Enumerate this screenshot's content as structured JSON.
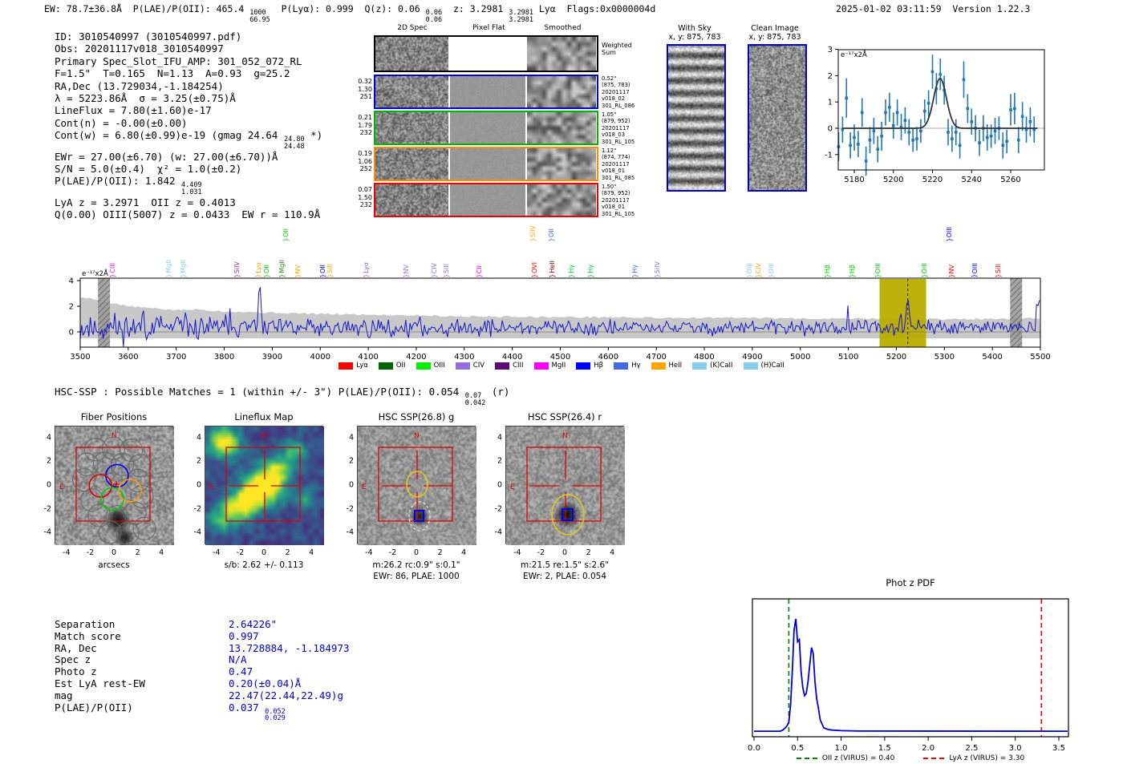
{
  "header": {
    "left_segments": [
      {
        "t": "EW: 78.7±36.8Å  P(LAE)/P(OII): 465.4 "
      },
      {
        "frac": [
          "1000",
          "66.95"
        ]
      },
      {
        "t": "  P(Lyα): 0.999  Q(z): 0.06 "
      },
      {
        "frac": [
          "0.06",
          "0.06"
        ]
      },
      {
        "t": "  z: 3.2981 "
      },
      {
        "frac": [
          "3.2981",
          "3.2981"
        ]
      },
      {
        "t": " Lyα  Flags:0x0000004d"
      }
    ],
    "right": "2025-01-02 03:11:59  Version 1.22.3"
  },
  "info_block": {
    "lines": [
      [
        {
          "t": "ID: 3010540997 (3010540997.pdf)"
        }
      ],
      [
        {
          "t": "Obs: 20201117v018_3010540997"
        }
      ],
      [
        {
          "t": "Primary Spec_Slot_IFU_AMP: 301_052_072_RL"
        }
      ],
      [
        {
          "t": "F=1.5\"  T=0.165  N=1.13  A=0.93  g=25.2"
        }
      ],
      [
        {
          "t": "RA,Dec (13.729034,-1.184254)"
        }
      ],
      [
        {
          "t": "λ = 5223.86Å  σ = 3.25(±0.75)Å"
        }
      ],
      [
        {
          "t": "LineFlux = 7.80(±1.60)e-17"
        }
      ],
      [
        {
          "t": "Cont(n) = -0.00(±0.00)"
        }
      ],
      [
        {
          "t": "Cont(w) = 6.80(±0.99)e-19 (gmag 24.64 "
        },
        {
          "frac": [
            "24.80",
            "24.48"
          ]
        },
        {
          "t": " *)"
        }
      ],
      [
        {
          "t": "EWr = 27.00(±6.70) (w: 27.00(±6.70))Å"
        }
      ],
      [
        {
          "t": "S/N = 5.0(±0.4)  χ² = 1.0(±0.2)"
        }
      ],
      [
        {
          "t": "P(LAE)/P(OII): 1.842 "
        },
        {
          "frac": [
            "4.409",
            "1.031"
          ]
        }
      ],
      [
        {
          "t": "LyA z = 3.2971  OII z = 0.4013"
        }
      ],
      [
        {
          "t": "Q(0.00) OIII(5007) z = 0.0433  EW r = 110.9Å"
        }
      ]
    ]
  },
  "spec2d": {
    "col_titles": [
      "2D Spec",
      "Pixel Flat",
      "Smoothed"
    ],
    "weighted_sum": [
      "Weighted",
      "Sum"
    ],
    "rows": [
      {
        "border": "#000000",
        "left": [],
        "right": []
      },
      {
        "border": "#0000dd",
        "left": [
          "0.32",
          "1.30",
          "251"
        ],
        "right": [
          "0.52\"",
          "(875, 783)",
          "20201117",
          "v018_02",
          "301_RL_086"
        ]
      },
      {
        "border": "#00b400",
        "left": [
          "0.21",
          "1.79",
          "232"
        ],
        "right": [
          "1.05\"",
          "(879, 952)",
          "20201117",
          "v018_03",
          "301_RL_105"
        ]
      },
      {
        "border": "#ff8c00",
        "left": [
          "0.19",
          "1.06",
          "252"
        ],
        "right": [
          "1.12\"",
          "(874, 774)",
          "20201117",
          "v018_01",
          "301_RL_085"
        ]
      },
      {
        "border": "#ee0000",
        "left": [
          "0.07",
          "1.50",
          "232"
        ],
        "right": [
          "1.50\"",
          "(879, 952)",
          "20201117",
          "v018_01",
          "301_RL_105"
        ]
      }
    ]
  },
  "sky": {
    "with_sky": {
      "title": "With Sky",
      "subtitle": "x, y: 875, 783"
    },
    "clean": {
      "title": "Clean Image",
      "subtitle": "x, y: 875, 783"
    }
  },
  "hsc_line_segments": [
    {
      "t": "HSC-SSP : Possible Matches = 1 (within +/- 3\")  P(LAE)/P(OII): 0.054 "
    },
    {
      "frac": [
        "0.07",
        "0.042"
      ]
    },
    {
      "t": " (r)"
    }
  ],
  "cutouts": {
    "yticks": [
      "4",
      "2",
      "0",
      "-2",
      "-4"
    ],
    "xticks": [
      "-4",
      "-2",
      "0",
      "2",
      "4"
    ],
    "compass": {
      "n": "N",
      "e": "E"
    },
    "panels": [
      {
        "type": "fibers",
        "title": "Fiber Positions",
        "caption": [
          "arcsecs"
        ]
      },
      {
        "type": "lineflux",
        "title": "Lineflux Map",
        "caption": [
          "s/b: 2.62 +/- 0.113"
        ]
      },
      {
        "type": "hsc_g",
        "title": "HSC SSP(26.8) g",
        "caption": [
          "m:26.2 rc:0.9\" s:0.1\"",
          "EWr: 86, PLAE: 1000"
        ]
      },
      {
        "type": "hsc_r",
        "title": "HSC SSP(26.4) r",
        "caption": [
          "m:21.5 re:1.5\" s:2.6\"",
          "EWr: 2, PLAE: 0.054"
        ]
      }
    ]
  },
  "match_table": {
    "rows": [
      {
        "label": "Separation",
        "value": [
          {
            "t": "2.64226\""
          }
        ]
      },
      {
        "label": "Match score",
        "value": [
          {
            "t": "0.997"
          }
        ]
      },
      {
        "label": "RA, Dec",
        "value": [
          {
            "t": "13.728884, -1.184973"
          }
        ]
      },
      {
        "label": "Spec z",
        "value": [
          {
            "t": "N/A"
          }
        ]
      },
      {
        "label": "Photo z",
        "value": [
          {
            "t": "0.47"
          }
        ]
      },
      {
        "label": "Est LyA rest-EW",
        "value": [
          {
            "t": "0.20(±0.04)Å"
          }
        ]
      },
      {
        "label": "mag",
        "value": [
          {
            "t": "22.47(22.44,22.49)g"
          }
        ]
      },
      {
        "label": "P(LAE)/P(OII)",
        "value": [
          {
            "t": "0.037 "
          },
          {
            "frac": [
              "0.052",
              "0.029"
            ]
          }
        ]
      }
    ]
  },
  "photz": {
    "title": "Phot z PDF"
  },
  "chart_data": [
    {
      "name": "line_zoom_spectrum",
      "type": "scatter",
      "unit_label": "e⁻¹⁷x2Å",
      "xticks": [
        5180,
        5200,
        5220,
        5240,
        5260
      ],
      "yticks": [
        -1,
        0,
        1,
        2,
        3
      ],
      "xlim": [
        5172,
        5277
      ],
      "ylim": [
        -1.55,
        3.05
      ],
      "point_color": "#1f77b4",
      "fit_color": "#333333",
      "fit": {
        "center": 5223.86,
        "sigma": 3.25,
        "amp": 1.9
      },
      "x": [
        5172,
        5174,
        5176,
        5178,
        5180,
        5182,
        5184,
        5186,
        5188,
        5190,
        5192,
        5194,
        5196,
        5198,
        5200,
        5202,
        5204,
        5206,
        5208,
        5210,
        5212,
        5214,
        5216,
        5218,
        5220,
        5222,
        5224,
        5226,
        5228,
        5230,
        5232,
        5234,
        5236,
        5238,
        5240,
        5242,
        5244,
        5246,
        5248,
        5250,
        5252,
        5254,
        5256,
        5258,
        5260,
        5262,
        5264,
        5266,
        5268,
        5270,
        5272
      ],
      "y": [
        -0.7,
        -0.05,
        1.15,
        -0.65,
        -0.35,
        -0.6,
        0.6,
        -1.25,
        -0.45,
        -0.1,
        -0.8,
        -0.3,
        0.6,
        0.8,
        0.1,
        0.6,
        0.05,
        0.3,
        -0.15,
        -0.45,
        -0.4,
        -0.1,
        0.65,
        0.95,
        2.15,
        1.5,
        2.05,
        1.45,
        -0.15,
        -0.4,
        -0.15,
        -0.65,
        1.85,
        0.75,
        0.25,
        0.0,
        -0.55,
        0.0,
        -0.35,
        -0.3,
        -0.1,
        0.0,
        -0.65,
        -0.5,
        0.7,
        0.75,
        -0.45,
        0.45,
        -0.05,
        0.25,
        -0.05
      ],
      "yerr": [
        0.55,
        0.5,
        0.75,
        0.5,
        0.5,
        0.5,
        0.55,
        0.55,
        0.5,
        0.5,
        0.5,
        0.55,
        0.5,
        0.55,
        0.5,
        0.5,
        0.5,
        0.5,
        0.5,
        0.45,
        0.45,
        0.45,
        0.45,
        0.5,
        0.65,
        0.6,
        0.6,
        0.55,
        0.5,
        0.5,
        0.5,
        0.5,
        0.7,
        0.55,
        0.5,
        0.5,
        0.5,
        0.5,
        0.5,
        0.45,
        0.5,
        0.45,
        0.5,
        0.45,
        0.6,
        0.6,
        0.5,
        0.55,
        0.5,
        0.55,
        0.5
      ]
    },
    {
      "name": "full_spectrum",
      "type": "line",
      "unit_label": "e⁻¹⁷x2Å",
      "xlim": [
        3500,
        5500
      ],
      "xtick_step": 100,
      "yticks": [
        0,
        2,
        4
      ],
      "line_color": "#1515cc",
      "envelope_color": "#c8c8c8",
      "envelope_anchors": [
        [
          3500,
          2.7
        ],
        [
          3520,
          2.6
        ],
        [
          3560,
          2.3
        ],
        [
          3600,
          2.0
        ],
        [
          3650,
          1.85
        ],
        [
          3700,
          1.7
        ],
        [
          3750,
          1.75
        ],
        [
          3800,
          1.6
        ],
        [
          3850,
          1.55
        ],
        [
          3900,
          1.5
        ],
        [
          3950,
          1.45
        ],
        [
          4000,
          1.4
        ],
        [
          4100,
          1.35
        ],
        [
          4200,
          1.3
        ],
        [
          4300,
          1.2
        ],
        [
          4400,
          1.2
        ],
        [
          4500,
          1.15
        ],
        [
          4600,
          1.15
        ],
        [
          4700,
          1.1
        ],
        [
          4800,
          1.1
        ],
        [
          4900,
          1.1
        ],
        [
          5000,
          1.05
        ],
        [
          5100,
          1.05
        ],
        [
          5200,
          1.05
        ],
        [
          5300,
          1.0
        ],
        [
          5400,
          1.0
        ],
        [
          5500,
          1.05
        ]
      ],
      "noise": {
        "seed": 11,
        "sigma": 0.42,
        "offset": 0.32,
        "spike_prob": 0.012
      },
      "peaks": [
        {
          "center": 5223.86,
          "amp": 2.25,
          "sigma": 3.4
        },
        {
          "center": 3873,
          "amp": 2.7,
          "sigma": 2.6
        },
        {
          "center": 3630,
          "amp": 1.9,
          "sigma": 2.2
        },
        {
          "center": 5497,
          "amp": 2.5,
          "sigma": 2.0
        }
      ],
      "highlight_band": {
        "from": 5165,
        "to": 5262,
        "color": "#b8ad00",
        "dashed_line_at": 5223.86
      },
      "hatch_bands": [
        [
          3537,
          3562
        ],
        [
          5437,
          5462
        ]
      ],
      "legend": [
        {
          "label": "Lyα",
          "color": "#ff0000"
        },
        {
          "label": "OII",
          "color": "#006400"
        },
        {
          "label": "OIII",
          "color": "#00ee00"
        },
        {
          "label": "CIV",
          "color": "#9370db"
        },
        {
          "label": "CIII",
          "color": "#5c0a78"
        },
        {
          "label": "MgII",
          "color": "#ff00ff"
        },
        {
          "label": "Hβ",
          "color": "#0000ff"
        },
        {
          "label": "Hγ",
          "color": "#4169e1"
        },
        {
          "label": "HeII",
          "color": "#ffa500"
        },
        {
          "label": "(K)CaII",
          "color": "#87ceeb"
        },
        {
          "label": "(H)CaII",
          "color": "#87ceeb"
        }
      ],
      "line_markers": [
        {
          "lambda": 3567,
          "label": "CIII",
          "color": "#ff00ff",
          "tall": false
        },
        {
          "lambda": 3684,
          "label": "MgII",
          "color": "#87ceeb",
          "tall": false
        },
        {
          "lambda": 3714,
          "label": "MgII",
          "color": "#87ceeb",
          "tall": false
        },
        {
          "lambda": 3826,
          "label": "SiIV",
          "color": "#993399",
          "tall": false
        },
        {
          "lambda": 3871,
          "label": "Lyα",
          "color": "#ffa500",
          "tall": false
        },
        {
          "lambda": 3888,
          "label": "OII",
          "color": "#00cc00",
          "tall": false
        },
        {
          "lambda": 3921,
          "label": "MgII",
          "color": "#2e8b22",
          "tall": false
        },
        {
          "lambda": 3929,
          "label": "OII",
          "color": "#00dd00",
          "tall": true
        },
        {
          "lambda": 3954,
          "label": "NV",
          "color": "#ffa500",
          "tall": false
        },
        {
          "lambda": 4005,
          "label": "OII",
          "color": "#0000ff",
          "tall": false
        },
        {
          "lambda": 4021,
          "label": "SiII",
          "color": "#ffa500",
          "tall": false
        },
        {
          "lambda": 4096,
          "label": "Lyα",
          "color": "#9370db",
          "tall": false
        },
        {
          "lambda": 4180,
          "label": "NV",
          "color": "#9370db",
          "tall": false
        },
        {
          "lambda": 4238,
          "label": "CIV",
          "color": "#9370db",
          "tall": false
        },
        {
          "lambda": 4262,
          "label": "SiII",
          "color": "#9370db",
          "tall": false
        },
        {
          "lambda": 4332,
          "label": "CII",
          "color": "#ff00ff",
          "tall": false
        },
        {
          "lambda": 4444,
          "label": "SiIV",
          "color": "#ffa500",
          "tall": true
        },
        {
          "lambda": 4446,
          "label": "OVI",
          "color": "#ff0000",
          "tall": false
        },
        {
          "lambda": 4481,
          "label": "OII",
          "color": "#4169e1",
          "tall": true
        },
        {
          "lambda": 4483,
          "label": "HeII",
          "color": "#8b0000",
          "tall": false
        },
        {
          "lambda": 4523,
          "label": "Hγ",
          "color": "#00cc44",
          "tall": false
        },
        {
          "lambda": 4564,
          "label": "Hγ",
          "color": "#00cc44",
          "tall": false
        },
        {
          "lambda": 4656,
          "label": "Hγ",
          "color": "#4169e1",
          "tall": false
        },
        {
          "lambda": 4703,
          "label": "SiIV",
          "color": "#9370db",
          "tall": false
        },
        {
          "lambda": 4895,
          "label": "OIII",
          "color": "#87ceeb",
          "tall": false
        },
        {
          "lambda": 4912,
          "label": "CIV",
          "color": "#ffa500",
          "tall": false
        },
        {
          "lambda": 4940,
          "label": "OIII",
          "color": "#87ceeb",
          "tall": false
        },
        {
          "lambda": 5057,
          "label": "Hβ",
          "color": "#00cc00",
          "tall": false
        },
        {
          "lambda": 5109,
          "label": "Hβ",
          "color": "#00cc00",
          "tall": false
        },
        {
          "lambda": 5162,
          "label": "OIII",
          "color": "#00cc00",
          "tall": false
        },
        {
          "lambda": 5258,
          "label": "OIII",
          "color": "#00cc00",
          "tall": false
        },
        {
          "lambda": 5310,
          "label": "OIII",
          "color": "#0000ff",
          "tall": true
        },
        {
          "lambda": 5316,
          "label": "NV",
          "color": "#ff0000",
          "tall": false
        },
        {
          "lambda": 5363,
          "label": "OIII",
          "color": "#0000ff",
          "tall": false
        },
        {
          "lambda": 5413,
          "label": "SiII",
          "color": "#ff0000",
          "tall": false
        }
      ]
    },
    {
      "name": "phot_z_pdf",
      "type": "line",
      "title": "Phot z PDF",
      "xticks": [
        0.0,
        0.5,
        1.0,
        1.5,
        2.0,
        2.5,
        3.0,
        3.5
      ],
      "xlim": [
        0.0,
        3.6
      ],
      "curve_color": "#0000dd",
      "points": [
        [
          0.0,
          0.02
        ],
        [
          0.3,
          0.02
        ],
        [
          0.33,
          0.03
        ],
        [
          0.36,
          0.05
        ],
        [
          0.38,
          0.07
        ],
        [
          0.4,
          0.1
        ],
        [
          0.42,
          0.25
        ],
        [
          0.44,
          0.55
        ],
        [
          0.46,
          0.9
        ],
        [
          0.48,
          1.0
        ],
        [
          0.5,
          0.8
        ],
        [
          0.52,
          0.82
        ],
        [
          0.54,
          0.55
        ],
        [
          0.56,
          0.4
        ],
        [
          0.58,
          0.33
        ],
        [
          0.6,
          0.35
        ],
        [
          0.62,
          0.45
        ],
        [
          0.64,
          0.6
        ],
        [
          0.66,
          0.75
        ],
        [
          0.68,
          0.7
        ],
        [
          0.7,
          0.45
        ],
        [
          0.72,
          0.3
        ],
        [
          0.74,
          0.22
        ],
        [
          0.76,
          0.12
        ],
        [
          0.8,
          0.05
        ],
        [
          0.85,
          0.035
        ],
        [
          0.9,
          0.03
        ],
        [
          1.0,
          0.025
        ],
        [
          1.2,
          0.022
        ],
        [
          3.6,
          0.02
        ]
      ],
      "vlines": [
        {
          "z": 0.4,
          "color": "#008000",
          "label": "OII z (VIRUS) = 0.40"
        },
        {
          "z": 3.3,
          "color": "#ff0000",
          "label": "LyA z (VIRUS) = 3.30"
        }
      ]
    }
  ]
}
